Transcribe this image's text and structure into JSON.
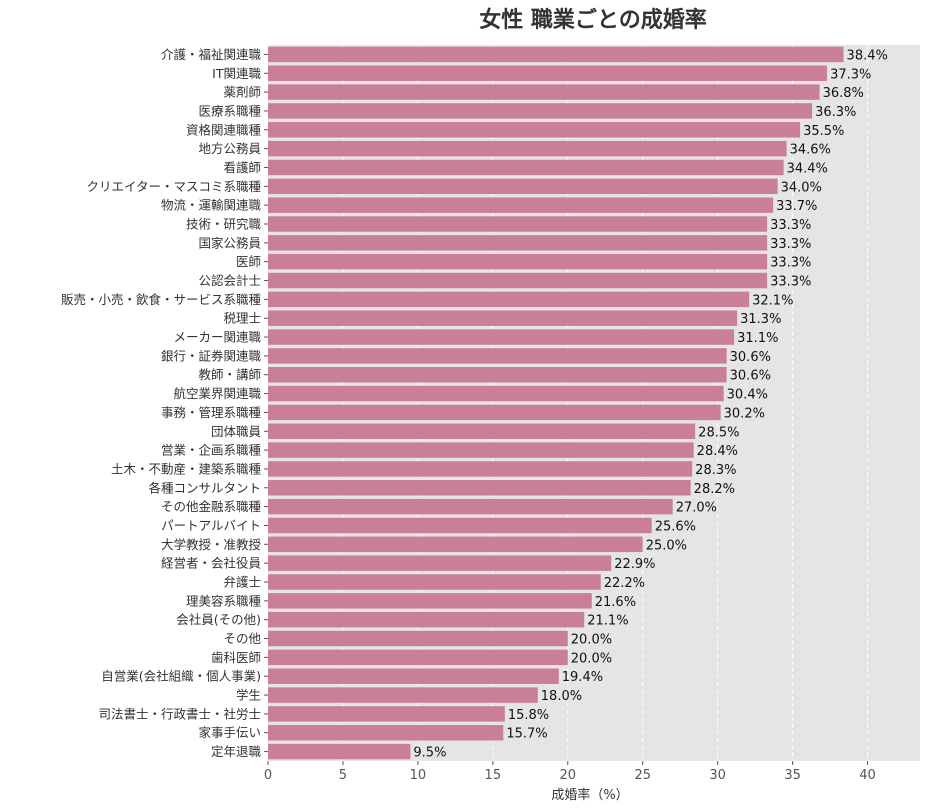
{
  "chart_data": {
    "type": "bar",
    "orientation": "horizontal",
    "title": "女性 職業ごとの成婚率",
    "xlabel": "成婚率（%）",
    "ylabel": "",
    "xlim": [
      0,
      43.5
    ],
    "xticks": [
      0,
      5,
      10,
      15,
      20,
      25,
      30,
      35,
      40
    ],
    "grid": true,
    "bar_color": "#c97f96",
    "background_color": "#e5e5e5",
    "value_suffix": "%",
    "categories": [
      "介護・福祉関連職",
      "IT関連職",
      "薬剤師",
      "医療系職種",
      "資格関連職種",
      "地方公務員",
      "看護師",
      "クリエイター・マスコミ系職種",
      "物流・運輸関連職",
      "技術・研究職",
      "国家公務員",
      "医師",
      "公認会計士",
      "販売・小売・飲食・サービス系職種",
      "税理士",
      "メーカー関連職",
      "銀行・証券関連職",
      "教師・講師",
      "航空業界関連職",
      "事務・管理系職種",
      "団体職員",
      "営業・企画系職種",
      "土木・不動産・建築系職種",
      "各種コンサルタント",
      "その他金融系職種",
      "パートアルバイト",
      "大学教授・准教授",
      "経営者・会社役員",
      "弁護士",
      "理美容系職種",
      "会社員(その他)",
      "その他",
      "歯科医師",
      "自営業(会社組織・個人事業)",
      "学生",
      "司法書士・行政書士・社労士",
      "家事手伝い",
      "定年退職"
    ],
    "values": [
      38.4,
      37.3,
      36.8,
      36.3,
      35.5,
      34.6,
      34.4,
      34.0,
      33.7,
      33.3,
      33.3,
      33.3,
      33.3,
      32.1,
      31.3,
      31.1,
      30.6,
      30.6,
      30.4,
      30.2,
      28.5,
      28.4,
      28.3,
      28.2,
      27.0,
      25.6,
      25.0,
      22.9,
      22.2,
      21.6,
      21.1,
      20.0,
      20.0,
      19.4,
      18.0,
      15.8,
      15.7,
      9.5
    ]
  }
}
